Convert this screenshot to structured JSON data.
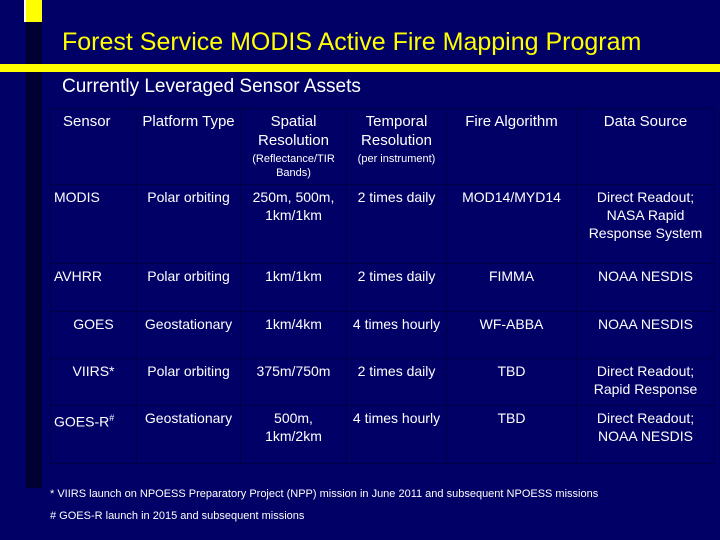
{
  "title": "Forest Service MODIS Active Fire Mapping Program",
  "subtitle": "Currently Leveraged Sensor Assets",
  "table": {
    "headers": {
      "sensor": "Sensor",
      "platform": "Platform Type",
      "spatial": "Spatial Resolution",
      "spatial_sub": "(Reflectance/TIR Bands)",
      "temporal": "Temporal Resolution",
      "temporal_sub": "(per instrument)",
      "algorithm": "Fire Algorithm",
      "source": "Data Source"
    },
    "rows": [
      {
        "sensor": "MODIS",
        "sensor_mark": "",
        "platform": "Polar orbiting",
        "spatial": "250m, 500m, 1km/1km",
        "temporal": "2 times daily",
        "algorithm": "MOD14/MYD14",
        "source": "Direct Readout; NASA Rapid Response System"
      },
      {
        "sensor": "AVHRR",
        "sensor_mark": "",
        "platform": "Polar orbiting",
        "spatial": "1km/1km",
        "temporal": "2 times daily",
        "algorithm": "FIMMA",
        "source": "NOAA NESDIS"
      },
      {
        "sensor": "GOES",
        "sensor_mark": "",
        "platform": "Geostationary",
        "spatial": "1km/4km",
        "temporal": "4 times hourly",
        "algorithm": "WF-ABBA",
        "source": "NOAA NESDIS"
      },
      {
        "sensor": "VIIRS*",
        "sensor_mark": "",
        "platform": "Polar orbiting",
        "spatial": "375m/750m",
        "temporal": "2 times daily",
        "algorithm": "TBD",
        "source": "Direct Readout; Rapid Response"
      },
      {
        "sensor": "GOES-R",
        "sensor_mark": "#",
        "platform": "Geostationary",
        "spatial": "500m, 1km/2km",
        "temporal": "4 times hourly",
        "algorithm": "TBD",
        "source": "Direct Readout; NOAA NESDIS"
      }
    ]
  },
  "footnotes": {
    "viirs": "* VIIRS launch on NPOESS Preparatory Project (NPP) mission in June 2011 and subsequent NPOESS missions",
    "goesr": "# GOES-R launch in 2015 and subsequent missions"
  },
  "colors": {
    "background": "#000066",
    "title": "#ffff00",
    "accent_bar": "#ffff00"
  }
}
